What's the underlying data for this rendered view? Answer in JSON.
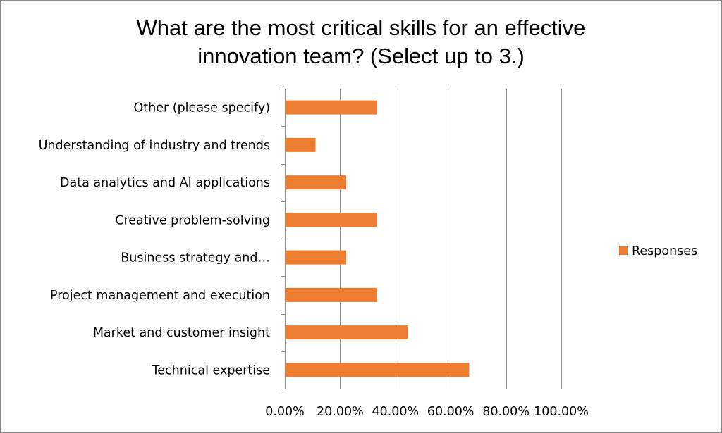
{
  "chart_data": {
    "type": "bar",
    "orientation": "horizontal",
    "title_lines": [
      "What are the most critical skills for an effective",
      "innovation team? (Select up to 3.)"
    ],
    "categories": [
      "Technical expertise",
      "Market and customer insight",
      "Project management and execution",
      "Business strategy and…",
      "Creative problem-solving",
      "Data analytics and AI applications",
      "Understanding of industry and trends",
      "Other (please specify)"
    ],
    "series": [
      {
        "name": "Responses",
        "color": "#ed7d31",
        "values": [
          0.6667,
          0.4444,
          0.3333,
          0.2222,
          0.3333,
          0.2222,
          0.1111,
          0.3333
        ]
      }
    ],
    "xlim": [
      0,
      1
    ],
    "x_ticks": [
      0,
      0.2,
      0.4,
      0.6,
      0.8,
      1.0
    ],
    "x_tick_labels": [
      "0.00%",
      "20.00%",
      "40.00%",
      "60.00%",
      "80.00%",
      "100.00%"
    ],
    "xlabel": "",
    "ylabel": "",
    "grid": "vertical",
    "legend_position": "right"
  }
}
